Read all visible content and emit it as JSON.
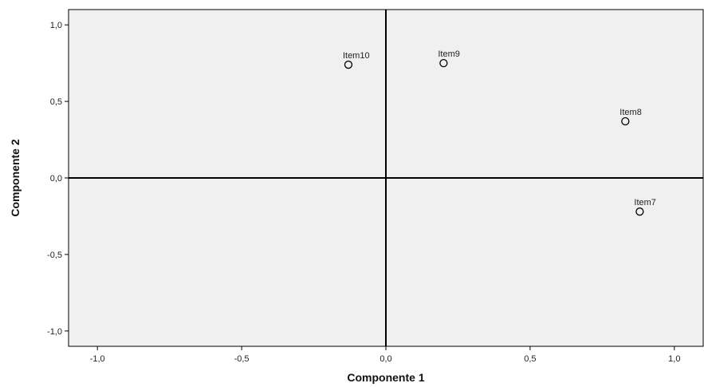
{
  "chart_data": {
    "type": "scatter",
    "xlabel": "Componente 1",
    "ylabel": "Componente 2",
    "xlim": [
      -1.1,
      1.1
    ],
    "ylim": [
      -1.1,
      1.1
    ],
    "x_ticks": [
      -1.0,
      -0.5,
      0.0,
      0.5,
      1.0
    ],
    "y_ticks": [
      -1.0,
      -0.5,
      0.0,
      0.5,
      1.0
    ],
    "x_tick_labels": [
      "-1,0",
      "-0,5",
      "0,0",
      "0,5",
      "1,0"
    ],
    "y_tick_labels": [
      "-1,0",
      "-0,5",
      "0,0",
      "0,5",
      "1,0"
    ],
    "grid": false,
    "reference_lines": {
      "x": 0,
      "y": 0
    },
    "points": [
      {
        "label": "Item10",
        "x": -0.13,
        "y": 0.74
      },
      {
        "label": "Item9",
        "x": 0.2,
        "y": 0.75
      },
      {
        "label": "Item8",
        "x": 0.83,
        "y": 0.37
      },
      {
        "label": "Item7",
        "x": 0.88,
        "y": -0.22
      }
    ],
    "colors": {
      "plot_background": "#f0f0f0",
      "marker_stroke": "#000000",
      "reference_line": "#000000"
    }
  }
}
